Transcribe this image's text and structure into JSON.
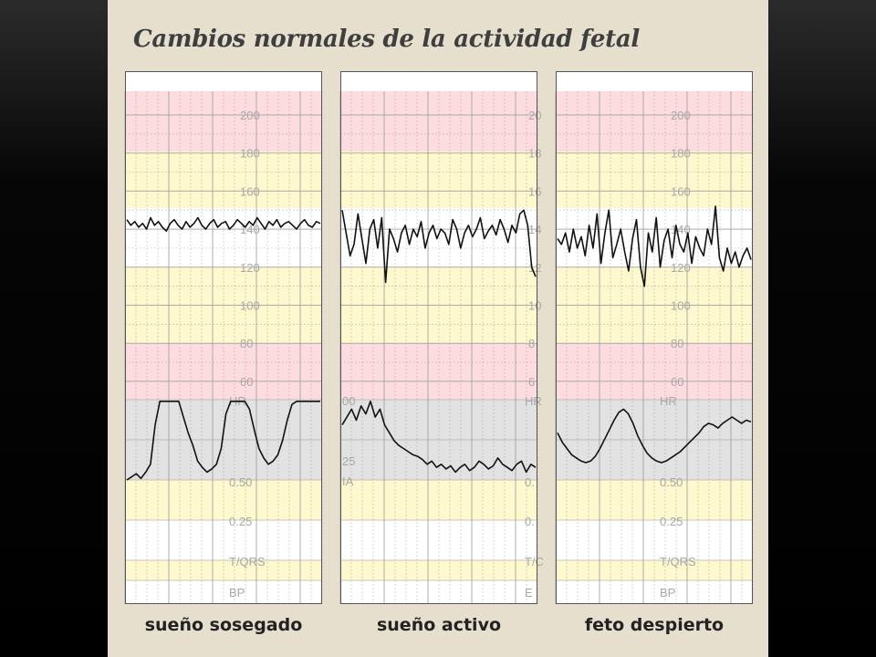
{
  "title": "Cambios normales de la actividad fetal",
  "colors": {
    "pink": "#fddcdf",
    "yellow": "#fdf8cd",
    "grey": "#e2e2e2",
    "white": "#ffffff",
    "grid": "#9a9a9a",
    "trace": "#111111",
    "label": "#a8a8a8"
  },
  "chart_data": [
    {
      "type": "line",
      "caption": "sueño sosegado",
      "hr_ticks": [
        "200",
        "180",
        "160",
        "140",
        "120",
        "100",
        "80",
        "60"
      ],
      "lower_labels": [
        "HR",
        "0.50",
        "0.25",
        "T/QRS",
        "BP"
      ],
      "hr_ylim": [
        60,
        200
      ],
      "series": [
        {
          "panel": "HR",
          "values": [
            145,
            142,
            144,
            141,
            143,
            140,
            146,
            142,
            144,
            141,
            139,
            143,
            145,
            142,
            140,
            144,
            141,
            143,
            146,
            142,
            140,
            143,
            145,
            141,
            143,
            144,
            140,
            142,
            145,
            143,
            141,
            144,
            142,
            146,
            143,
            140,
            144,
            142,
            145,
            141,
            143,
            144,
            142,
            140,
            143,
            145,
            142,
            141,
            144,
            143
          ]
        },
        {
          "panel": "HR/STV",
          "values": [
            0.5,
            0.52,
            0.54,
            0.51,
            0.55,
            0.6,
            0.85,
            1.0,
            1.0,
            1.0,
            1.0,
            1.0,
            0.9,
            0.8,
            0.72,
            0.62,
            0.58,
            0.55,
            0.57,
            0.6,
            0.7,
            0.92,
            1.0,
            1.0,
            1.0,
            1.0,
            0.95,
            0.82,
            0.7,
            0.64,
            0.6,
            0.62,
            0.66,
            0.75,
            0.88,
            0.98,
            1.0,
            1.0,
            1.0,
            1.0,
            1.0,
            1.0
          ]
        }
      ]
    },
    {
      "type": "line",
      "caption": "sueño activo",
      "hr_ticks": [
        "20",
        "18",
        "16",
        "14",
        "12",
        "10",
        "8",
        "6"
      ],
      "lower_labels": [
        "HR",
        "0.",
        "0.",
        "T/C",
        "E"
      ],
      "lower_left_labels": [
        "00",
        "25",
        "IA"
      ],
      "hr_ylim": [
        60,
        200
      ],
      "series": [
        {
          "panel": "HR",
          "values": [
            150,
            138,
            126,
            132,
            148,
            135,
            122,
            140,
            145,
            130,
            146,
            112,
            140,
            135,
            128,
            138,
            142,
            132,
            140,
            136,
            144,
            130,
            138,
            142,
            135,
            140,
            138,
            132,
            145,
            140,
            130,
            138,
            142,
            136,
            140,
            146,
            135,
            139,
            142,
            137,
            145,
            140,
            133,
            142,
            138,
            148,
            150,
            142,
            120,
            115
          ]
        },
        {
          "panel": "HR/STV",
          "values": [
            0.85,
            0.9,
            0.95,
            0.88,
            0.97,
            0.92,
            1.0,
            0.9,
            0.95,
            0.85,
            0.8,
            0.75,
            0.72,
            0.7,
            0.68,
            0.66,
            0.65,
            0.63,
            0.6,
            0.62,
            0.58,
            0.6,
            0.57,
            0.59,
            0.55,
            0.58,
            0.6,
            0.56,
            0.58,
            0.62,
            0.6,
            0.57,
            0.59,
            0.64,
            0.6,
            0.58,
            0.56,
            0.6,
            0.62,
            0.55,
            0.6,
            0.58
          ]
        }
      ]
    },
    {
      "type": "line",
      "caption": "feto despierto",
      "hr_ticks": [
        "200",
        "180",
        "160",
        "140",
        "120",
        "100",
        "80",
        "60"
      ],
      "lower_labels": [
        "HR",
        "0.50",
        "0.25",
        "T/QRS",
        "BP"
      ],
      "hr_ylim": [
        60,
        200
      ],
      "series": [
        {
          "panel": "HR",
          "values": [
            135,
            132,
            138,
            128,
            140,
            130,
            136,
            126,
            142,
            130,
            148,
            122,
            138,
            150,
            125,
            132,
            140,
            128,
            118,
            135,
            145,
            120,
            110,
            138,
            128,
            146,
            120,
            134,
            140,
            125,
            142,
            132,
            128,
            138,
            122,
            136,
            130,
            126,
            140,
            132,
            152,
            125,
            118,
            130,
            122,
            128,
            120,
            126,
            130,
            124
          ]
        },
        {
          "panel": "HR/STV",
          "values": [
            0.8,
            0.74,
            0.7,
            0.66,
            0.64,
            0.62,
            0.61,
            0.62,
            0.65,
            0.7,
            0.76,
            0.82,
            0.88,
            0.93,
            0.95,
            0.92,
            0.86,
            0.78,
            0.72,
            0.67,
            0.64,
            0.62,
            0.61,
            0.62,
            0.64,
            0.66,
            0.68,
            0.71,
            0.74,
            0.77,
            0.8,
            0.84,
            0.86,
            0.85,
            0.83,
            0.86,
            0.88,
            0.9,
            0.88,
            0.86,
            0.88,
            0.87
          ]
        }
      ]
    }
  ]
}
